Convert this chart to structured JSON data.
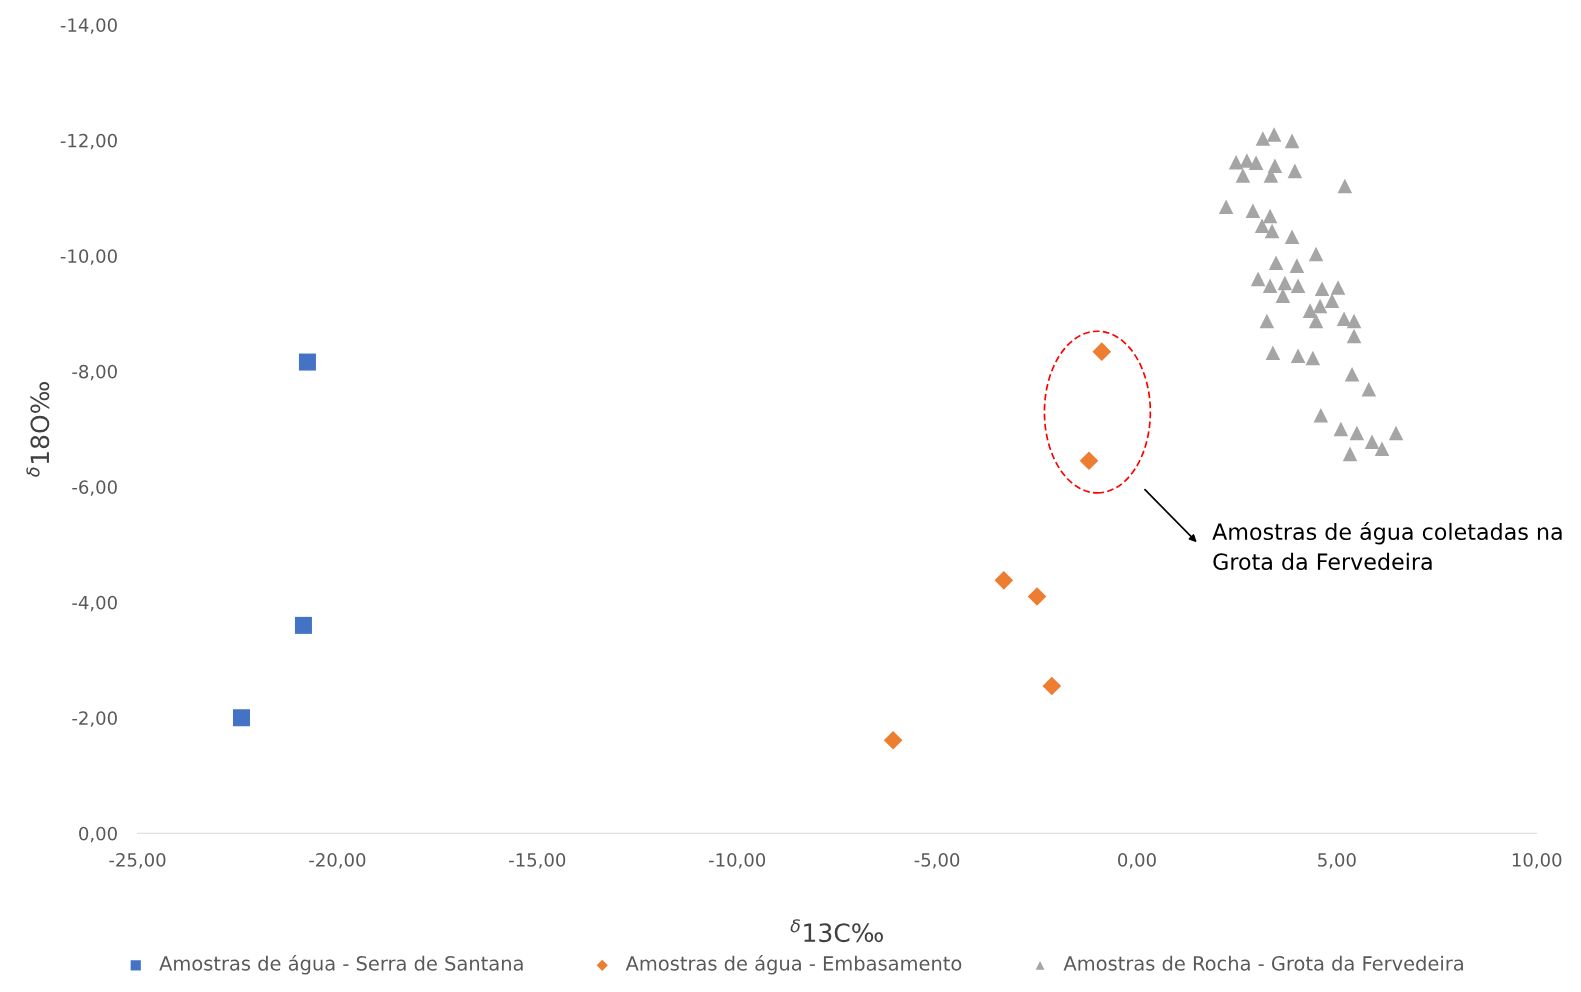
{
  "chart_data": {
    "type": "scatter",
    "xlabel": "$^{δ}$13C‰",
    "ylabel": "$^{δ}$18O‰",
    "xlim": [
      -25,
      10
    ],
    "ylim": [
      0,
      -14
    ],
    "xticks": [
      {
        "value": -25,
        "label": "-25,00"
      },
      {
        "value": -20,
        "label": "-20,00"
      },
      {
        "value": -15,
        "label": "-15,00"
      },
      {
        "value": -10,
        "label": "-10,00"
      },
      {
        "value": -5,
        "label": "-5,00"
      },
      {
        "value": 0,
        "label": "0,00"
      },
      {
        "value": 5,
        "label": "5,00"
      },
      {
        "value": 10,
        "label": "10,00"
      }
    ],
    "yticks": [
      {
        "value": 0,
        "label": "0,00"
      },
      {
        "value": -2,
        "label": "-2,00"
      },
      {
        "value": -4,
        "label": "-4,00"
      },
      {
        "value": -6,
        "label": "-6,00"
      },
      {
        "value": -8,
        "label": "-8,00"
      },
      {
        "value": -10,
        "label": "-10,00"
      },
      {
        "value": -12,
        "label": "-12,00"
      },
      {
        "value": -14,
        "label": "-14,00"
      }
    ],
    "grid": false,
    "legend": "bottom",
    "annotations": [
      "Amostras de água coletadas na\nGrota da Fervedeira"
    ],
    "series": [
      {
        "name": "Amostras de água - Serra de Santana",
        "color": "#4472c4",
        "marker": "square",
        "x": [
          -22.4,
          -20.75,
          -20.85
        ],
        "values": [
          -2.0,
          -8.16,
          -3.6
        ]
      },
      {
        "name": "Amostras de água - Embasamento",
        "color": "#ed7d31",
        "marker": "diamond",
        "x": [
          -0.88,
          -1.2,
          -3.33,
          -2.5,
          -2.13,
          -6.1
        ],
        "values": [
          -8.34,
          -6.45,
          -4.38,
          -4.1,
          -2.55,
          -1.61
        ]
      },
      {
        "name": "Amostras de Rocha - Grota da Fervedeira",
        "color": "#a5a5a5",
        "marker": "triangle",
        "x": [
          3.15,
          3.43,
          3.88,
          2.48,
          2.75,
          2.98,
          2.65,
          3.45,
          3.95,
          3.35,
          5.2,
          2.23,
          2.9,
          3.33,
          3.13,
          3.38,
          3.88,
          4.48,
          3.48,
          4.0,
          3.03,
          3.33,
          3.7,
          4.03,
          3.65,
          4.63,
          5.03,
          4.58,
          4.88,
          4.33,
          4.48,
          5.18,
          5.43,
          5.43,
          3.25,
          3.4,
          4.03,
          4.4,
          5.38,
          5.8,
          4.6,
          5.1,
          5.5,
          5.88,
          6.13,
          6.48,
          5.33
        ],
        "values": [
          -12.03,
          -12.1,
          -11.99,
          -11.62,
          -11.65,
          -11.61,
          -11.39,
          -11.56,
          -11.47,
          -11.39,
          -11.21,
          -10.85,
          -10.78,
          -10.69,
          -10.52,
          -10.43,
          -10.33,
          -10.03,
          -9.88,
          -9.83,
          -9.6,
          -9.48,
          -9.53,
          -9.48,
          -9.31,
          -9.43,
          -9.45,
          -9.13,
          -9.22,
          -9.05,
          -8.87,
          -8.91,
          -8.87,
          -8.61,
          -8.87,
          -8.32,
          -8.27,
          -8.23,
          -7.95,
          -7.69,
          -7.24,
          -7.0,
          -6.93,
          -6.78,
          -6.66,
          -6.93,
          -6.57
        ]
      }
    ]
  }
}
